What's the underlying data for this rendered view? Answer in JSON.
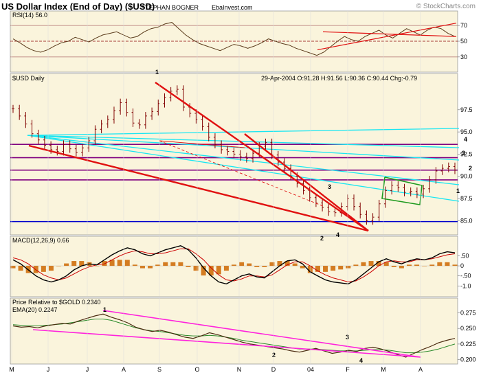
{
  "header": {
    "title": "US Dollar Index (End of Day) ($USD)",
    "author": "STEPHAN BOGNER",
    "site": "EbaInvest.com",
    "copyright": "© StockCharts.com"
  },
  "chart_data": [
    {
      "type": "line",
      "panel": "rsi",
      "title": "RSI(14) 56.0",
      "y_ticks": [
        "70",
        "50",
        "30"
      ],
      "ylim": [
        15,
        85
      ],
      "reference_lines": [
        70,
        50,
        30
      ],
      "series": [
        {
          "values": [
            53,
            48,
            42,
            38,
            36,
            39,
            44,
            48,
            50,
            55,
            52,
            49,
            54,
            58,
            60,
            62,
            58,
            54,
            56,
            62,
            66,
            68,
            72,
            74,
            66,
            58,
            52,
            47,
            44,
            41,
            38,
            42,
            46,
            44,
            41,
            44,
            48,
            53,
            50,
            47,
            45,
            41,
            38,
            35,
            32,
            36,
            43,
            50,
            56,
            52,
            50,
            56,
            60,
            64,
            58,
            54,
            60,
            66,
            62,
            58,
            64,
            68,
            66,
            60,
            56
          ]
        }
      ]
    },
    {
      "type": "candlestick",
      "panel": "price",
      "title": "$USD Daily",
      "info": "29-Apr-2004 O:91.28 H:91.56 L:90.36 C:90.44 Chg:-0.79",
      "y_ticks": [
        "97.5",
        "95.0",
        "92.5",
        "90.0",
        "87.5",
        "85.0"
      ],
      "ylim": [
        83.4,
        101.2
      ],
      "x_labels": [
        "M",
        "J",
        "J",
        "A",
        "S",
        "O",
        "N",
        "D",
        "04",
        "F",
        "M",
        "A"
      ],
      "closes": [
        97.6,
        96.8,
        95.9,
        94.8,
        94.1,
        93.5,
        93.0,
        92.8,
        93.6,
        93.1,
        92.7,
        93.2,
        94.0,
        95.3,
        95.9,
        96.4,
        97.4,
        98.3,
        97.2,
        96.0,
        95.8,
        96.8,
        97.3,
        98.2,
        98.9,
        99.6,
        99.8,
        97.8,
        97.1,
        96.4,
        95.6,
        94.4,
        93.6,
        93.0,
        92.8,
        92.5,
        92.2,
        92.0,
        92.6,
        93.4,
        93.8,
        92.4,
        91.6,
        90.9,
        90.0,
        89.2,
        88.4,
        87.6,
        87.0,
        86.5,
        86.0,
        85.9,
        86.6,
        87.5,
        86.6,
        85.7,
        85.0,
        85.4,
        86.9,
        88.4,
        89.0,
        88.7,
        88.2,
        88.3,
        88.0,
        88.6,
        89.6,
        90.6,
        90.9,
        91.1,
        90.7
      ],
      "horizontal_lines": [
        {
          "value": 93.6,
          "color": "#800080"
        },
        {
          "value": 92.1,
          "color": "#800080"
        },
        {
          "value": 90.7,
          "color": "#800080"
        },
        {
          "value": 89.6,
          "color": "#800080"
        },
        {
          "value": 84.9,
          "color": "#0000cc"
        }
      ],
      "annotations": [
        {
          "text": "1",
          "color": "#cc0000"
        },
        {
          "text": "2",
          "color": "#cc0000"
        },
        {
          "text": "3",
          "color": "#cc0000"
        },
        {
          "text": "4",
          "color": "#cc0000"
        },
        {
          "text": "4",
          "color": "#000000"
        },
        {
          "text": "3",
          "color": "#000000"
        },
        {
          "text": "2",
          "color": "#000000"
        },
        {
          "text": "1",
          "color": "#000000"
        }
      ]
    },
    {
      "type": "line",
      "panel": "macd",
      "title": "MACD(12,26,9) 0.66",
      "y_ticks": [
        ".50",
        "0",
        "-.50",
        "-1.0"
      ],
      "ylim": [
        -1.4,
        1.2
      ],
      "series": [
        {
          "values": [
            0.3,
            0.1,
            -0.2,
            -0.5,
            -0.7,
            -0.8,
            -0.7,
            -0.5,
            -0.2,
            0.0,
            0.1,
            0.05,
            0.3,
            0.55,
            0.75,
            0.9,
            0.8,
            0.6,
            0.5,
            0.65,
            0.8,
            0.9,
            1.0,
            0.8,
            0.4,
            -0.1,
            -0.5,
            -0.8,
            -0.9,
            -0.7,
            -0.5,
            -0.4,
            -0.55,
            -0.6,
            -0.3,
            0.0,
            0.25,
            0.3,
            0.1,
            -0.3,
            -0.5,
            -0.7,
            -0.8,
            -0.85,
            -0.9,
            -0.7,
            -0.4,
            -0.1,
            0.2,
            0.35,
            0.2,
            0.1,
            0.25,
            0.35,
            0.3,
            0.4,
            0.6,
            0.7,
            0.65
          ]
        },
        {
          "values": [
            0.4,
            0.3,
            0.1,
            -0.2,
            -0.45,
            -0.6,
            -0.7,
            -0.6,
            -0.4,
            -0.2,
            -0.05,
            0.05,
            0.1,
            0.3,
            0.5,
            0.65,
            0.75,
            0.7,
            0.6,
            0.6,
            0.65,
            0.75,
            0.85,
            0.85,
            0.6,
            0.3,
            -0.1,
            -0.45,
            -0.7,
            -0.75,
            -0.65,
            -0.5,
            -0.5,
            -0.55,
            -0.45,
            -0.2,
            0.05,
            0.2,
            0.2,
            0.0,
            -0.25,
            -0.45,
            -0.6,
            -0.7,
            -0.8,
            -0.75,
            -0.55,
            -0.3,
            0.0,
            0.2,
            0.25,
            0.2,
            0.2,
            0.3,
            0.3,
            0.35,
            0.45,
            0.55,
            0.6
          ]
        }
      ]
    },
    {
      "type": "line",
      "panel": "relative",
      "title": "Price Relative to $GOLD 0.2340",
      "ylim": [
        0.193,
        0.292
      ],
      "y_ticks": [
        "0.275",
        "0.250",
        "0.225",
        "0.200"
      ],
      "x_labels": [
        "M",
        "J",
        "J",
        "A",
        "S",
        "O",
        "N",
        "D",
        "04",
        "F",
        "M",
        "A"
      ],
      "series": [
        {
          "name": "Price Relative to $GOLD 0.2340",
          "values": [
            0.254,
            0.252,
            0.253,
            0.251,
            0.254,
            0.256,
            0.258,
            0.257,
            0.262,
            0.266,
            0.27,
            0.273,
            0.268,
            0.264,
            0.259,
            0.252,
            0.248,
            0.245,
            0.247,
            0.244,
            0.24,
            0.236,
            0.234,
            0.238,
            0.243,
            0.24,
            0.236,
            0.232,
            0.228,
            0.225,
            0.223,
            0.221,
            0.219,
            0.217,
            0.214,
            0.212,
            0.215,
            0.218,
            0.214,
            0.21,
            0.212,
            0.215,
            0.213,
            0.218,
            0.22,
            0.217,
            0.213,
            0.208,
            0.204,
            0.21,
            0.216,
            0.221,
            0.227,
            0.231,
            0.234
          ]
        },
        {
          "name": "EMA(20) 0.2247",
          "values": [
            0.256,
            0.255,
            0.254,
            0.254,
            0.255,
            0.256,
            0.257,
            0.259,
            0.261,
            0.263,
            0.265,
            0.265,
            0.263,
            0.259,
            0.255,
            0.251,
            0.248,
            0.246,
            0.245,
            0.243,
            0.241,
            0.239,
            0.238,
            0.238,
            0.239,
            0.238,
            0.236,
            0.234,
            0.231,
            0.229,
            0.227,
            0.225,
            0.223,
            0.221,
            0.219,
            0.217,
            0.217,
            0.217,
            0.216,
            0.215,
            0.214,
            0.214,
            0.214,
            0.215,
            0.216,
            0.216,
            0.215,
            0.213,
            0.211,
            0.211,
            0.212,
            0.214,
            0.217,
            0.221,
            0.225
          ]
        }
      ],
      "annotations": [
        {
          "text": "1",
          "color": "#e000e0"
        },
        {
          "text": "2",
          "color": "#e000e0"
        },
        {
          "text": "3",
          "color": "#e000e0"
        },
        {
          "text": "4",
          "color": "#e000e0"
        }
      ]
    }
  ],
  "colors": {
    "panel_bg": "#faf4dc",
    "price_line": "#000000",
    "bar_color": "#800000",
    "trend_red": "#e01010",
    "channel_cyan": "#19e6f2",
    "relative_line": "#4a2a10",
    "ema_line": "#2a8a2a",
    "trend_magenta": "#ff22dd",
    "macd_line": "#000000",
    "signal_line": "#cc0000",
    "histogram": "#cc6600"
  }
}
